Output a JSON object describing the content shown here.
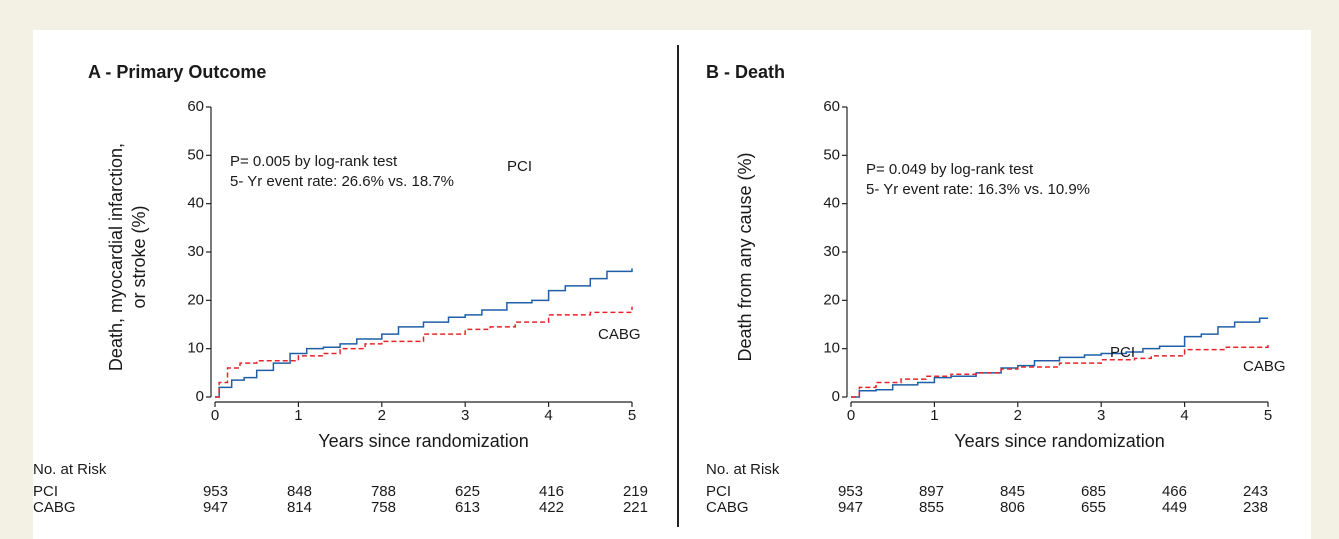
{
  "chart_data": [
    {
      "type": "line",
      "title": "A - Primary Outcome",
      "ylabel": [
        "Death, myocardial infarction,",
        "or stroke (%)"
      ],
      "xlabel": "Years since randomization",
      "annotations": [
        "P= 0.005 by log-rank test",
        "5- Yr event rate: 26.6% vs. 18.7%"
      ],
      "xlim": [
        0,
        5
      ],
      "ylim": [
        0,
        60
      ],
      "xticks": [
        0,
        1,
        2,
        3,
        4,
        5
      ],
      "yticks": [
        0,
        10,
        20,
        30,
        40,
        50,
        60
      ],
      "step": true,
      "series": [
        {
          "name": "PCI",
          "color": "#1f5fa8",
          "line_style": "solid",
          "x": [
            0,
            0.05,
            0.2,
            0.35,
            0.5,
            0.7,
            0.9,
            1.1,
            1.3,
            1.5,
            1.7,
            2.0,
            2.2,
            2.5,
            2.8,
            3.0,
            3.2,
            3.5,
            3.8,
            4.0,
            4.2,
            4.5,
            4.7,
            5.0
          ],
          "values": [
            0,
            2,
            3.5,
            4,
            5.5,
            7,
            9,
            10,
            10.3,
            11,
            12,
            13,
            14.5,
            15.5,
            16.5,
            17,
            18,
            19.5,
            20,
            22,
            23,
            24.5,
            26,
            26.6
          ]
        },
        {
          "name": "CABG",
          "color": "#e8242b",
          "line_style": "dashed",
          "x": [
            0,
            0.05,
            0.15,
            0.3,
            0.5,
            0.8,
            1.0,
            1.3,
            1.5,
            1.8,
            2.0,
            2.5,
            3.0,
            3.3,
            3.6,
            4.0,
            4.5,
            5.0
          ],
          "values": [
            0,
            3,
            6,
            7,
            7.5,
            7.5,
            8.5,
            9,
            10,
            11,
            11.5,
            13,
            14,
            14.5,
            15.5,
            17,
            17.5,
            18.7
          ]
        }
      ],
      "risk_table": {
        "title": "No. at Risk",
        "rows": [
          {
            "name": "PCI",
            "values": [
              953,
              848,
              788,
              625,
              416,
              219
            ]
          },
          {
            "name": "CABG",
            "values": [
              947,
              814,
              758,
              613,
              422,
              221
            ]
          }
        ]
      }
    },
    {
      "type": "line",
      "title": "B - Death",
      "ylabel": [
        "Death from any cause (%)"
      ],
      "xlabel": "Years since randomization",
      "annotations": [
        "P= 0.049 by log-rank test",
        "5- Yr event rate: 16.3% vs. 10.9%"
      ],
      "xlim": [
        0,
        5
      ],
      "ylim": [
        0,
        60
      ],
      "xticks": [
        0,
        1,
        2,
        3,
        4,
        5
      ],
      "yticks": [
        0,
        10,
        20,
        30,
        40,
        50,
        60
      ],
      "step": true,
      "series": [
        {
          "name": "PCI",
          "color": "#1f5fa8",
          "line_style": "solid",
          "x": [
            0,
            0.1,
            0.3,
            0.5,
            0.8,
            1.0,
            1.2,
            1.5,
            1.8,
            2.0,
            2.2,
            2.5,
            2.8,
            3.0,
            3.3,
            3.5,
            3.7,
            4.0,
            4.2,
            4.4,
            4.6,
            4.9,
            5.0
          ],
          "values": [
            0,
            1.3,
            1.5,
            2.5,
            3,
            4,
            4.3,
            5,
            6,
            6.5,
            7.5,
            8.2,
            8.7,
            9,
            9.3,
            10,
            10.5,
            12.5,
            13,
            14.5,
            15.5,
            16.3,
            16.3
          ]
        },
        {
          "name": "CABG",
          "color": "#e8242b",
          "line_style": "dashed",
          "x": [
            0,
            0.1,
            0.3,
            0.6,
            0.9,
            1.2,
            1.5,
            1.8,
            2.0,
            2.5,
            3.0,
            3.4,
            3.6,
            4.0,
            4.5,
            5.0
          ],
          "values": [
            0,
            2,
            3,
            3.7,
            4.3,
            4.7,
            5,
            5.8,
            6.2,
            7,
            7.7,
            8,
            8.5,
            9.8,
            10.3,
            10.9
          ]
        }
      ],
      "risk_table": {
        "title": "No. at Risk",
        "rows": [
          {
            "name": "PCI",
            "values": [
              953,
              897,
              845,
              685,
              466,
              243
            ]
          },
          {
            "name": "CABG",
            "values": [
              947,
              855,
              806,
              655,
              449,
              238
            ]
          }
        ]
      }
    }
  ]
}
